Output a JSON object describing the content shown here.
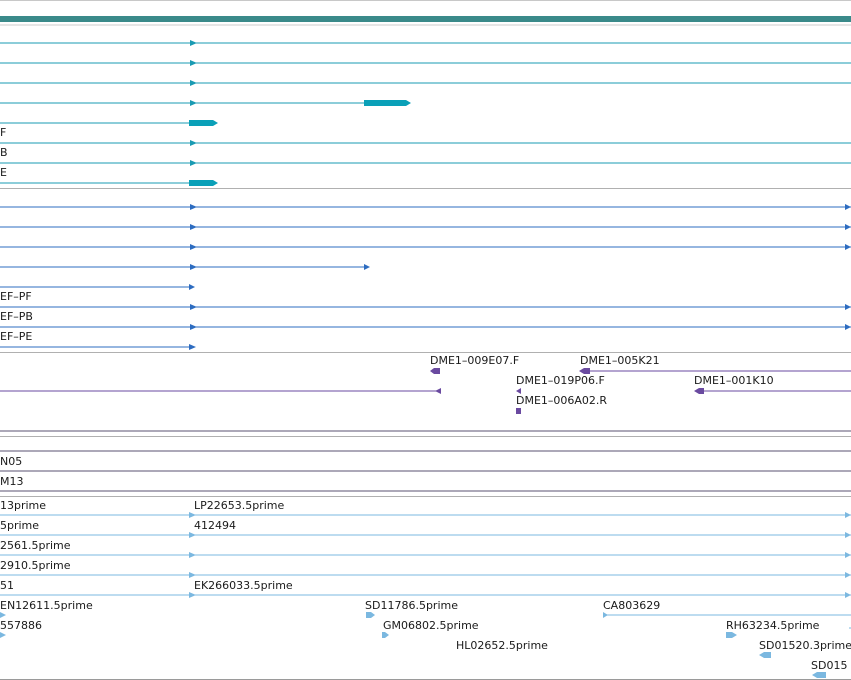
{
  "colors": {
    "header_bar": "#3a8a8a",
    "transcript_teal": "#1a9bb3",
    "cds_teal": "#0aa0b8",
    "transcript_blue": "#2d6cc0",
    "clone_purple": "#6a4aa0",
    "est_light_blue": "#7bb8e0",
    "separator": "#b0b0b0"
  },
  "tracks": {
    "transcripts_teal": {
      "rows": [
        {
          "label": ""
        },
        {
          "label": ""
        },
        {
          "label": ""
        },
        {
          "label": ""
        },
        {
          "label": ""
        },
        {
          "label": "F"
        },
        {
          "label": "B"
        },
        {
          "label": "E"
        }
      ]
    },
    "transcripts_blue": {
      "rows": [
        {
          "label": ""
        },
        {
          "label": ""
        },
        {
          "label": ""
        },
        {
          "label": ""
        },
        {
          "label": ""
        },
        {
          "label": "EF–PF"
        },
        {
          "label": "EF–PB"
        },
        {
          "label": "EF–PE"
        }
      ]
    },
    "bac_clones": {
      "labels": [
        "DME1–009E07.F",
        "DME1–005K21",
        "DME1–019P06.F",
        "DME1–001K10",
        "DME1–006A02.R"
      ]
    },
    "clone_lines": {
      "labels": [
        "N05",
        "M13"
      ]
    },
    "est_alignments": {
      "labels": [
        "13prime",
        "LP22653.5prime",
        "5prime",
        "412494",
        "2561.5prime",
        "2910.5prime",
        "51",
        "EK266033.5prime",
        "EN12611.5prime",
        "SD11786.5prime",
        "CA803629",
        "557886",
        "GM06802.5prime",
        "RH63234.5prime",
        "HL02652.5prime",
        "SD01520.3prime",
        "SD015"
      ]
    }
  }
}
